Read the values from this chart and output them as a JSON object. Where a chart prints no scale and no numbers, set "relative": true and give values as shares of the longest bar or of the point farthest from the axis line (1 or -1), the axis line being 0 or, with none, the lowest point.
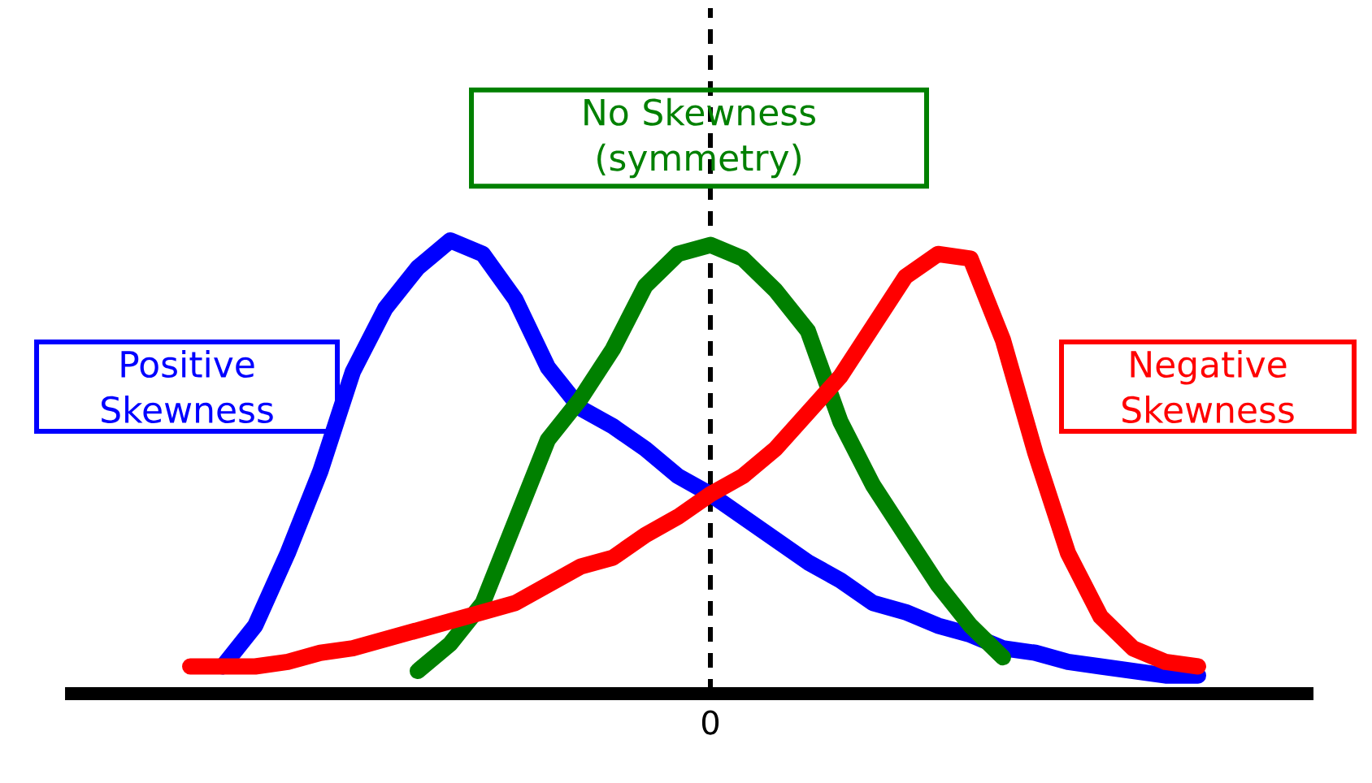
{
  "chart_data": {
    "type": "line",
    "relative": true,
    "categories": [
      null,
      null,
      null,
      null,
      null,
      null,
      null,
      null,
      null,
      null,
      null,
      null,
      null,
      null,
      null,
      null,
      null,
      null,
      null,
      null,
      null,
      null,
      null,
      null,
      null,
      null,
      null,
      null,
      null,
      null,
      null,
      null,
      null
    ],
    "series": [
      {
        "name": "Positive Skewness",
        "color": "#0000ff",
        "values": [
          null,
          0.06,
          0.15,
          0.31,
          0.49,
          0.71,
          0.85,
          0.94,
          1,
          0.97,
          0.87,
          0.72,
          0.63,
          0.59,
          0.54,
          0.48,
          0.44,
          0.39,
          0.34,
          0.29,
          0.25,
          0.2,
          0.18,
          0.15,
          0.13,
          0.1,
          0.09,
          0.07,
          0.06,
          0.05,
          0.04,
          0.04,
          null
        ]
      },
      {
        "name": "No Skewness (symmetry)",
        "color": "#008000",
        "values": [
          null,
          null,
          null,
          null,
          null,
          null,
          null,
          0.05,
          0.11,
          0.2,
          0.38,
          0.56,
          0.65,
          0.76,
          0.9,
          0.97,
          0.99,
          0.96,
          0.89,
          0.8,
          0.6,
          0.46,
          0.35,
          0.24,
          0.15,
          0.08,
          null,
          null,
          null,
          null,
          null,
          null,
          null
        ]
      },
      {
        "name": "Negative Skewness",
        "color": "#ff0000",
        "values": [
          0.06,
          0.06,
          0.06,
          0.07,
          0.09,
          0.1,
          0.12,
          0.14,
          0.16,
          0.18,
          0.2,
          0.24,
          0.28,
          0.3,
          0.35,
          0.39,
          0.44,
          0.48,
          0.54,
          0.62,
          0.7,
          0.81,
          0.92,
          0.97,
          0.96,
          0.78,
          0.53,
          0.31,
          0.17,
          0.1,
          0.07,
          0.06,
          null
        ]
      }
    ],
    "annotations": [
      "0"
    ],
    "legend": false,
    "line_style": "solid",
    "marker": "none"
  }
}
